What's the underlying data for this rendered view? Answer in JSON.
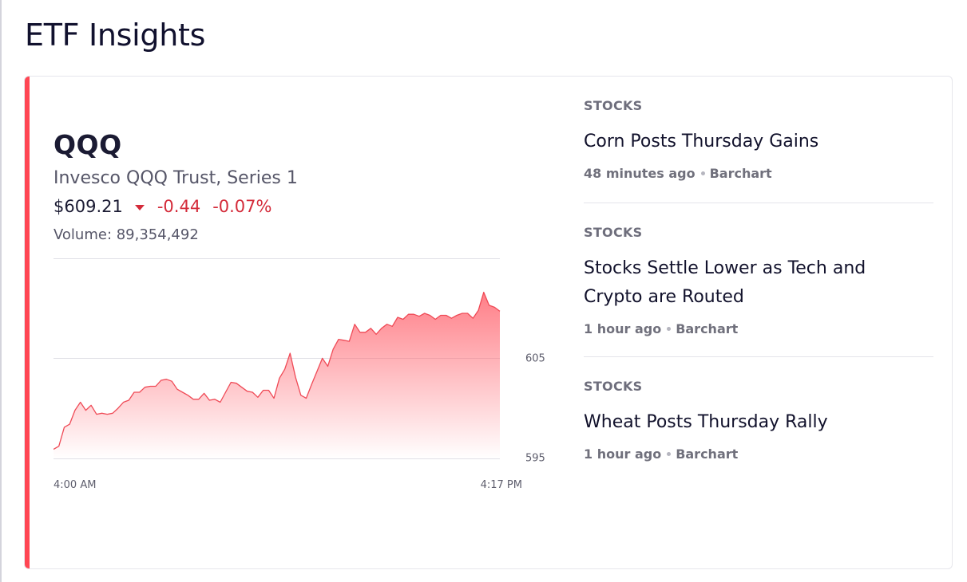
{
  "page": {
    "title": "ETF Insights"
  },
  "etf": {
    "symbol": "QQQ",
    "name": "Invesco QQQ Trust, Series 1",
    "price": "$609.21",
    "change": "-0.44",
    "change_percent": "-0.07%",
    "volume": "Volume: 89,354,492"
  },
  "colors": {
    "accent": "#ff4653",
    "negative": "#d42b3a",
    "line": "#ef4a56"
  },
  "chart_data": {
    "type": "area",
    "title": "",
    "xlabel": "",
    "ylabel": "",
    "x_tick_labels": [
      "4:00 AM",
      "4:17 PM"
    ],
    "y_ticks": [
      {
        "value": 595,
        "label": "595"
      },
      {
        "value": 605,
        "label": "605"
      }
    ],
    "ylim": [
      594.9,
      615
    ],
    "grid": true,
    "series": [
      {
        "name": "QQQ",
        "values": [
          595.9,
          596.2,
          598.1,
          598.4,
          599.8,
          600.6,
          599.8,
          600.3,
          599.4,
          599.5,
          599.4,
          599.5,
          600.0,
          600.6,
          600.8,
          601.6,
          601.6,
          602.1,
          602.2,
          602.2,
          602.8,
          602.9,
          602.7,
          601.9,
          601.6,
          601.3,
          600.9,
          600.9,
          601.5,
          600.8,
          600.9,
          600.6,
          601.6,
          602.6,
          602.5,
          602.1,
          601.7,
          601.6,
          601.1,
          601.8,
          601.8,
          601.0,
          603.0,
          603.9,
          605.5,
          603.1,
          601.3,
          601.0,
          602.4,
          603.7,
          605.0,
          604.2,
          605.9,
          606.9,
          606.8,
          606.7,
          608.4,
          607.6,
          607.6,
          608.0,
          607.4,
          608.0,
          608.4,
          608.2,
          609.1,
          608.9,
          609.4,
          609.4,
          609.2,
          609.5,
          609.3,
          608.9,
          609.3,
          609.3,
          609.0,
          609.3,
          609.5,
          609.5,
          609.0,
          609.8,
          611.6,
          610.3,
          610.1,
          609.7
        ]
      }
    ]
  },
  "news": [
    {
      "category": "STOCKS",
      "headline": "Corn Posts Thursday Gains",
      "time": "48 minutes ago",
      "source": "Barchart"
    },
    {
      "category": "STOCKS",
      "headline": "Stocks Settle Lower as Tech and Crypto are Routed",
      "time": "1 hour ago",
      "source": "Barchart"
    },
    {
      "category": "STOCKS",
      "headline": "Wheat Posts Thursday Rally",
      "time": "1 hour ago",
      "source": "Barchart"
    }
  ]
}
